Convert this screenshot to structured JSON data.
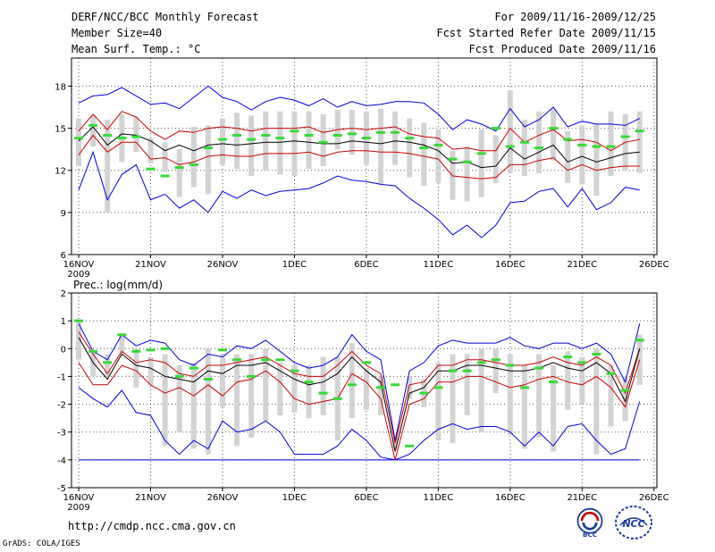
{
  "header": {
    "title": "DERF/NCC/BCC Monthly Forecast",
    "member_size": "Member Size=40",
    "temp_label": "Mean Surf. Temp.: °C",
    "for_range": "For 2009/11/16-2009/12/25",
    "fcst_started": "Fcst Started Refer Date 2009/11/15",
    "fcst_produced": "Fcst Produced Date 2009/11/16"
  },
  "footer": {
    "url": "http://cmdp.ncc.cma.gov.cn",
    "credit": "GrADS: COLA/IGES",
    "logo_bcc": "BCC",
    "logo_ncc": "NCC"
  },
  "colors": {
    "envelope": "#0000dd",
    "spread": "#cc0000",
    "mean": "#000000",
    "box": "#d3d3d3",
    "median": "#33dd33"
  },
  "chart_data": [
    {
      "type": "box",
      "title": "Mean Surf. Temp.: °C",
      "xlabel": "",
      "ylabel": "",
      "ylim": [
        6,
        20
      ],
      "yticks": [
        6,
        9,
        12,
        15,
        18
      ],
      "x_ticks": [
        {
          "day": 1,
          "label": "16NOV",
          "sublabel": "2009"
        },
        {
          "day": 6,
          "label": "21NOV"
        },
        {
          "day": 11,
          "label": "26NOV"
        },
        {
          "day": 16,
          "label": "1DEC"
        },
        {
          "day": 21,
          "label": "6DEC"
        },
        {
          "day": 26,
          "label": "11DEC"
        },
        {
          "day": 31,
          "label": "16DEC"
        },
        {
          "day": 36,
          "label": "21DEC"
        },
        {
          "day": 41,
          "label": "26DEC"
        }
      ],
      "xlim": [
        0.5,
        41.2
      ],
      "days": [
        1,
        2,
        3,
        4,
        5,
        6,
        7,
        8,
        9,
        10,
        11,
        12,
        13,
        14,
        15,
        16,
        17,
        18,
        19,
        20,
        21,
        22,
        23,
        24,
        25,
        26,
        27,
        28,
        29,
        30,
        31,
        32,
        33,
        34,
        35,
        36,
        37,
        38,
        39,
        40
      ],
      "max": [
        16.8,
        17.3,
        17.4,
        17.9,
        17.3,
        16.7,
        16.8,
        16.4,
        17.2,
        18.0,
        17.2,
        16.9,
        16.3,
        16.9,
        17.2,
        17.0,
        16.6,
        17.1,
        16.5,
        16.9,
        16.6,
        16.7,
        16.9,
        16.9,
        16.8,
        16.0,
        14.9,
        15.6,
        15.3,
        14.8,
        16.4,
        15.1,
        15.6,
        16.5,
        15.1,
        15.5,
        15.3,
        15.3,
        15.2,
        15.7
      ],
      "upper": [
        14.8,
        16.0,
        14.9,
        16.2,
        15.8,
        14.8,
        14.2,
        14.8,
        14.7,
        15.0,
        15.1,
        15.0,
        14.8,
        15.0,
        15.0,
        15.0,
        15.1,
        14.7,
        14.9,
        15.0,
        14.9,
        15.0,
        15.1,
        14.6,
        14.4,
        14.3,
        13.5,
        13.6,
        13.4,
        13.4,
        15.0,
        14.0,
        14.5,
        14.9,
        14.1,
        14.2,
        14.0,
        13.4,
        14.0,
        14.2
      ],
      "mean": [
        14.1,
        15.1,
        13.8,
        14.6,
        14.5,
        14.1,
        13.4,
        13.8,
        13.4,
        13.8,
        13.9,
        13.8,
        13.9,
        14.0,
        14.0,
        14.1,
        14.0,
        13.9,
        13.9,
        14.1,
        14.0,
        13.9,
        14.1,
        14.0,
        13.8,
        13.4,
        12.5,
        12.6,
        12.2,
        12.3,
        13.6,
        12.8,
        13.3,
        13.8,
        12.6,
        13.0,
        12.6,
        12.9,
        13.2,
        13.3
      ],
      "lower": [
        13.1,
        14.5,
        13.3,
        14.0,
        14.0,
        12.8,
        12.9,
        12.4,
        12.6,
        13.0,
        13.1,
        13.0,
        13.0,
        13.2,
        13.2,
        13.2,
        13.3,
        13.0,
        13.3,
        13.4,
        13.4,
        13.3,
        13.3,
        13.2,
        13.0,
        12.8,
        11.6,
        11.5,
        11.4,
        11.5,
        12.4,
        12.4,
        12.7,
        12.9,
        12.0,
        12.4,
        12.0,
        12.2,
        12.3,
        12.3
      ],
      "min": [
        10.6,
        13.3,
        9.9,
        11.7,
        12.4,
        9.9,
        10.3,
        9.3,
        9.9,
        9.0,
        10.5,
        10.0,
        10.6,
        10.2,
        10.5,
        10.6,
        10.7,
        11.1,
        11.6,
        11.3,
        11.2,
        11.0,
        10.9,
        10.0,
        9.3,
        8.5,
        7.4,
        8.1,
        7.2,
        8.1,
        9.7,
        9.8,
        10.5,
        10.7,
        9.4,
        10.7,
        9.2,
        9.7,
        10.8,
        10.6
      ],
      "box_high": [
        15.7,
        15.9,
        15.6,
        16.0,
        15.8,
        14.3,
        14.0,
        13.5,
        15.1,
        15.2,
        15.7,
        16.1,
        15.9,
        16.2,
        16.2,
        16.2,
        16.2,
        16.0,
        16.3,
        16.3,
        16.2,
        16.4,
        16.2,
        15.7,
        15.4,
        14.9,
        13.4,
        13.7,
        14.9,
        14.5,
        17.7,
        15.6,
        16.2,
        16.4,
        14.8,
        15.2,
        15.3,
        16.2,
        16.0,
        16.2
      ],
      "box_low": [
        12.3,
        13.7,
        9.0,
        12.6,
        13.3,
        12.5,
        11.9,
        10.1,
        10.8,
        10.3,
        12.4,
        12.1,
        11.6,
        12.0,
        11.7,
        11.6,
        12.1,
        12.3,
        13.5,
        13.1,
        12.4,
        11.0,
        12.4,
        11.5,
        10.9,
        11.1,
        9.9,
        9.8,
        10.1,
        11.1,
        11.8,
        11.6,
        11.8,
        12.7,
        11.1,
        11.0,
        10.2,
        11.6,
        12.0,
        11.8
      ],
      "median": [
        14.3,
        15.2,
        14.5,
        14.3,
        14.4,
        12.1,
        11.6,
        12.2,
        12.4,
        13.6,
        14.2,
        14.5,
        14.2,
        14.5,
        14.3,
        14.8,
        14.5,
        14.0,
        14.5,
        14.6,
        14.3,
        14.7,
        14.7,
        14.3,
        13.6,
        13.8,
        12.8,
        12.6,
        13.2,
        15.0,
        13.7,
        14.0,
        13.6,
        15.0,
        14.2,
        13.8,
        13.7,
        13.7,
        14.4,
        14.8
      ]
    },
    {
      "type": "box",
      "title": "Prec.: log(mm/d)",
      "xlabel": "",
      "ylabel": "",
      "ylim": [
        -5,
        2
      ],
      "yticks": [
        -5,
        -4,
        -3,
        -2,
        -1,
        0,
        1,
        2
      ],
      "x_ticks": [
        {
          "day": 1,
          "label": "16NOV",
          "sublabel": "2009"
        },
        {
          "day": 6,
          "label": "21NOV"
        },
        {
          "day": 11,
          "label": "26NOV"
        },
        {
          "day": 16,
          "label": "1DEC"
        },
        {
          "day": 21,
          "label": "6DEC"
        },
        {
          "day": 26,
          "label": "11DEC"
        },
        {
          "day": 31,
          "label": "16DEC"
        },
        {
          "day": 36,
          "label": "21DEC"
        },
        {
          "day": 41,
          "label": "26DEC"
        }
      ],
      "xlim": [
        0.5,
        41.2
      ],
      "days": [
        1,
        2,
        3,
        4,
        5,
        6,
        7,
        8,
        9,
        10,
        11,
        12,
        13,
        14,
        15,
        16,
        17,
        18,
        19,
        20,
        21,
        22,
        23,
        24,
        25,
        26,
        27,
        28,
        29,
        30,
        31,
        32,
        33,
        34,
        35,
        36,
        37,
        38,
        39,
        40
      ],
      "floor": -4,
      "max": [
        0.9,
        -0.1,
        -0.4,
        0.5,
        0.1,
        0.3,
        0.2,
        -0.4,
        -0.6,
        -0.2,
        -0.3,
        0.1,
        0.0,
        0.3,
        -0.1,
        -0.5,
        -0.7,
        -0.6,
        -0.3,
        0.5,
        -0.1,
        -0.4,
        -3.3,
        -0.8,
        -0.5,
        0.1,
        0.3,
        0.2,
        0.2,
        0.2,
        0.4,
        0.1,
        0.0,
        0.2,
        0.2,
        0.0,
        0.2,
        -0.2,
        -1.2,
        0.9
      ],
      "upper": [
        0.6,
        -0.2,
        -0.9,
        -0.1,
        -0.5,
        -0.4,
        -0.5,
        -0.9,
        -1.0,
        -0.6,
        -0.6,
        -0.5,
        -0.4,
        -0.3,
        -0.6,
        -0.9,
        -1.0,
        -1.0,
        -0.6,
        -0.1,
        -0.6,
        -0.9,
        -3.4,
        -1.3,
        -1.2,
        -0.6,
        -0.6,
        -0.4,
        -0.4,
        -0.5,
        -0.6,
        -0.6,
        -0.5,
        -0.3,
        -0.5,
        -0.6,
        -0.3,
        -0.6,
        -1.6,
        0.0
      ],
      "mean": [
        0.4,
        -0.5,
        -1.1,
        -0.2,
        -0.6,
        -0.7,
        -1.0,
        -1.1,
        -1.2,
        -0.8,
        -0.9,
        -0.6,
        -0.6,
        -0.5,
        -0.8,
        -1.1,
        -1.3,
        -1.2,
        -0.9,
        -0.3,
        -0.8,
        -1.2,
        -3.7,
        -1.6,
        -1.4,
        -0.8,
        -0.8,
        -0.6,
        -0.6,
        -0.7,
        -0.8,
        -0.8,
        -0.7,
        -0.5,
        -0.7,
        -0.8,
        -0.5,
        -0.9,
        -1.9,
        0.0
      ],
      "lower": [
        -0.5,
        -1.3,
        -1.3,
        -0.6,
        -0.8,
        -1.3,
        -1.6,
        -1.4,
        -1.7,
        -1.3,
        -1.7,
        -1.2,
        -1.1,
        -0.8,
        -1.2,
        -1.8,
        -2.0,
        -1.9,
        -1.8,
        -0.9,
        -1.2,
        -1.8,
        -4.0,
        -2.0,
        -1.8,
        -1.2,
        -1.2,
        -1.0,
        -1.0,
        -1.2,
        -1.4,
        -1.3,
        -1.1,
        -1.0,
        -1.2,
        -1.3,
        -1.0,
        -1.4,
        -2.1,
        -0.4
      ],
      "min": [
        -1.4,
        -1.8,
        -2.1,
        -1.5,
        -2.3,
        -2.4,
        -3.3,
        -3.8,
        -3.3,
        -3.6,
        -2.6,
        -3.0,
        -2.9,
        -2.6,
        -3.0,
        -3.8,
        -3.8,
        -3.8,
        -3.5,
        -2.9,
        -3.3,
        -3.9,
        -4.0,
        -3.8,
        -3.3,
        -2.9,
        -2.7,
        -2.9,
        -2.8,
        -2.8,
        -3.0,
        -3.5,
        -3.0,
        -3.5,
        -2.8,
        -2.7,
        -3.3,
        -3.8,
        -3.6,
        -1.9
      ],
      "box_high": [
        1.0,
        -0.1,
        -0.2,
        0.5,
        0.0,
        -0.3,
        -0.2,
        -0.6,
        -0.5,
        0.0,
        -0.2,
        -0.2,
        -0.2,
        0.0,
        -0.5,
        -0.6,
        -0.6,
        -0.3,
        -0.3,
        0.2,
        -0.7,
        -1.0,
        -3.2,
        -1.0,
        -1.1,
        -0.5,
        -0.2,
        -0.2,
        0.0,
        0.0,
        -0.2,
        -0.6,
        -0.2,
        -0.6,
        -0.1,
        -0.3,
        0.0,
        -0.6,
        -1.0,
        0.5
      ],
      "box_low": [
        -0.4,
        -1.0,
        -1.0,
        -0.2,
        -1.4,
        -1.3,
        -3.5,
        -3.0,
        -3.6,
        -3.8,
        -2.1,
        -3.5,
        -3.2,
        -2.6,
        -2.4,
        -2.3,
        -2.5,
        -2.4,
        -3.3,
        -2.5,
        -2.2,
        -2.4,
        -3.6,
        -1.8,
        -2.1,
        -3.3,
        -3.4,
        -2.4,
        -3.0,
        -1.6,
        -3.1,
        -3.6,
        -3.2,
        -3.7,
        -2.2,
        -2.0,
        -3.8,
        -2.8,
        -2.6,
        -1.3
      ],
      "median": [
        1.0,
        -0.1,
        -0.5,
        0.5,
        -0.1,
        -0.05,
        0.0,
        -1.0,
        -0.7,
        -1.1,
        -0.05,
        -0.4,
        -1.0,
        -0.4,
        -0.4,
        -0.8,
        -1.2,
        -1.6,
        -1.8,
        -1.3,
        -0.5,
        -1.4,
        -1.3,
        -3.5,
        -1.6,
        -1.4,
        -0.8,
        -0.8,
        -0.5,
        -0.4,
        -0.6,
        -1.4,
        -0.7,
        -1.2,
        -0.3,
        -0.5,
        -0.2,
        -0.9,
        -1.5,
        0.3
      ]
    }
  ]
}
